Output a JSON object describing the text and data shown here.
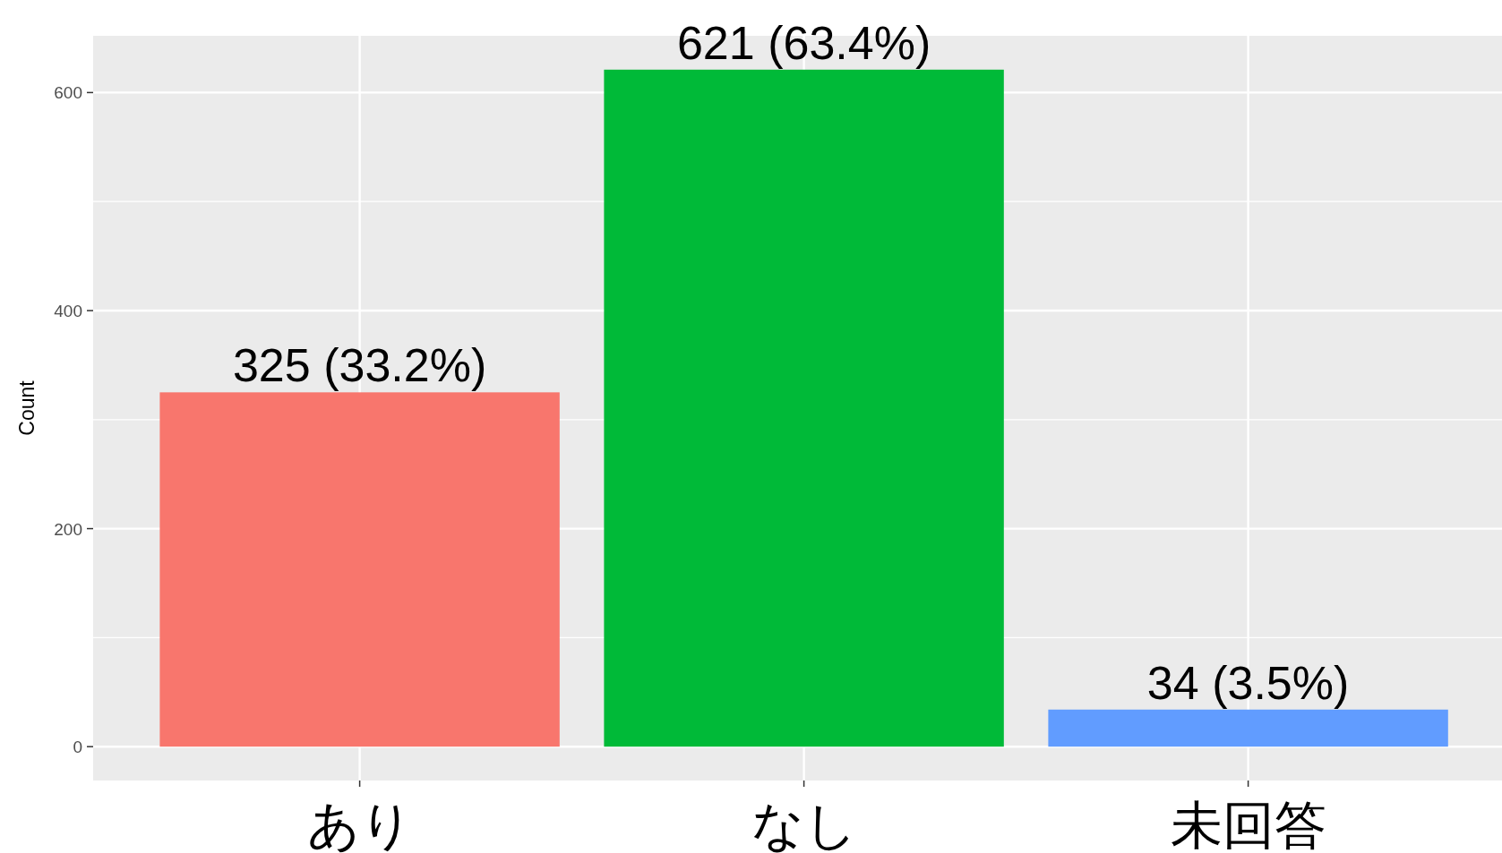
{
  "chart_data": {
    "type": "bar",
    "ylabel": "Count",
    "categories": [
      "あり",
      "なし",
      "未回答"
    ],
    "values": [
      325,
      621,
      34
    ],
    "colors": [
      "#f8766d",
      "#00ba38",
      "#619cff"
    ],
    "value_labels": [
      "325 (33.2%)",
      "621 (63.4%)",
      "34 (3.5%)"
    ],
    "ylim": [
      -31.05,
      652.05
    ],
    "yticks": [
      0,
      200,
      400,
      600
    ],
    "grid": true
  }
}
